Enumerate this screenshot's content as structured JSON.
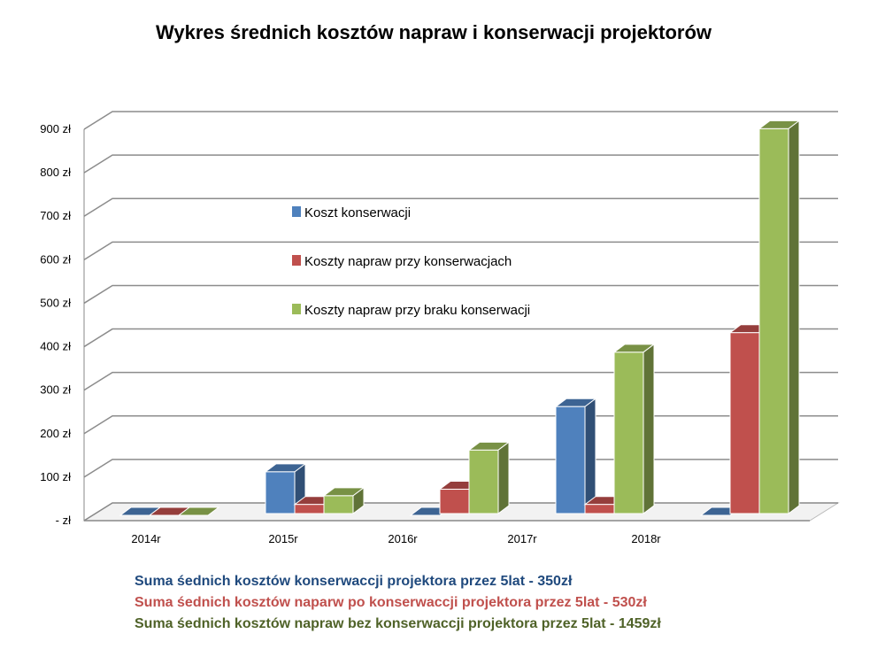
{
  "chart_data": {
    "type": "bar",
    "title": "Wykres średnich kosztów napraw i konserwacji projektorów",
    "categories": [
      "2014r",
      "2015r",
      "2016r",
      "2017r",
      "2018r"
    ],
    "y_ticks": [
      "- zł",
      "100 zł",
      "200 zł",
      "300 zł",
      "400 zł",
      "500 zł",
      "600 zł",
      "700 zł",
      "800 zł",
      "900 zł"
    ],
    "ylim": [
      0,
      900
    ],
    "grid": true,
    "legend_position": "inside-center",
    "series": [
      {
        "name": "Koszt konserwacji",
        "values": [
          0,
          100,
          0,
          250,
          0
        ],
        "color": "#4f81bd"
      },
      {
        "name": "Koszty napraw przy konserwacjach",
        "values": [
          0,
          25,
          60,
          25,
          420
        ],
        "color": "#c0504d"
      },
      {
        "name": "Koszty napraw przy braku konserwacji",
        "values": [
          0,
          45,
          150,
          375,
          889
        ],
        "color": "#9bbb59"
      }
    ]
  },
  "summary": [
    {
      "text": "Suma śednich kosztów konserwaccji projektora przez 5lat - 350zł",
      "color": "#1f497d"
    },
    {
      "text": "Suma śednich kosztów naparw po konserwaccji projektora przez 5lat - 530zł",
      "color": "#c0504d"
    },
    {
      "text": "Suma śednich kosztów napraw bez konserwaccji projektora przez 5lat - 1459zł",
      "color": "#4f6228"
    }
  ]
}
